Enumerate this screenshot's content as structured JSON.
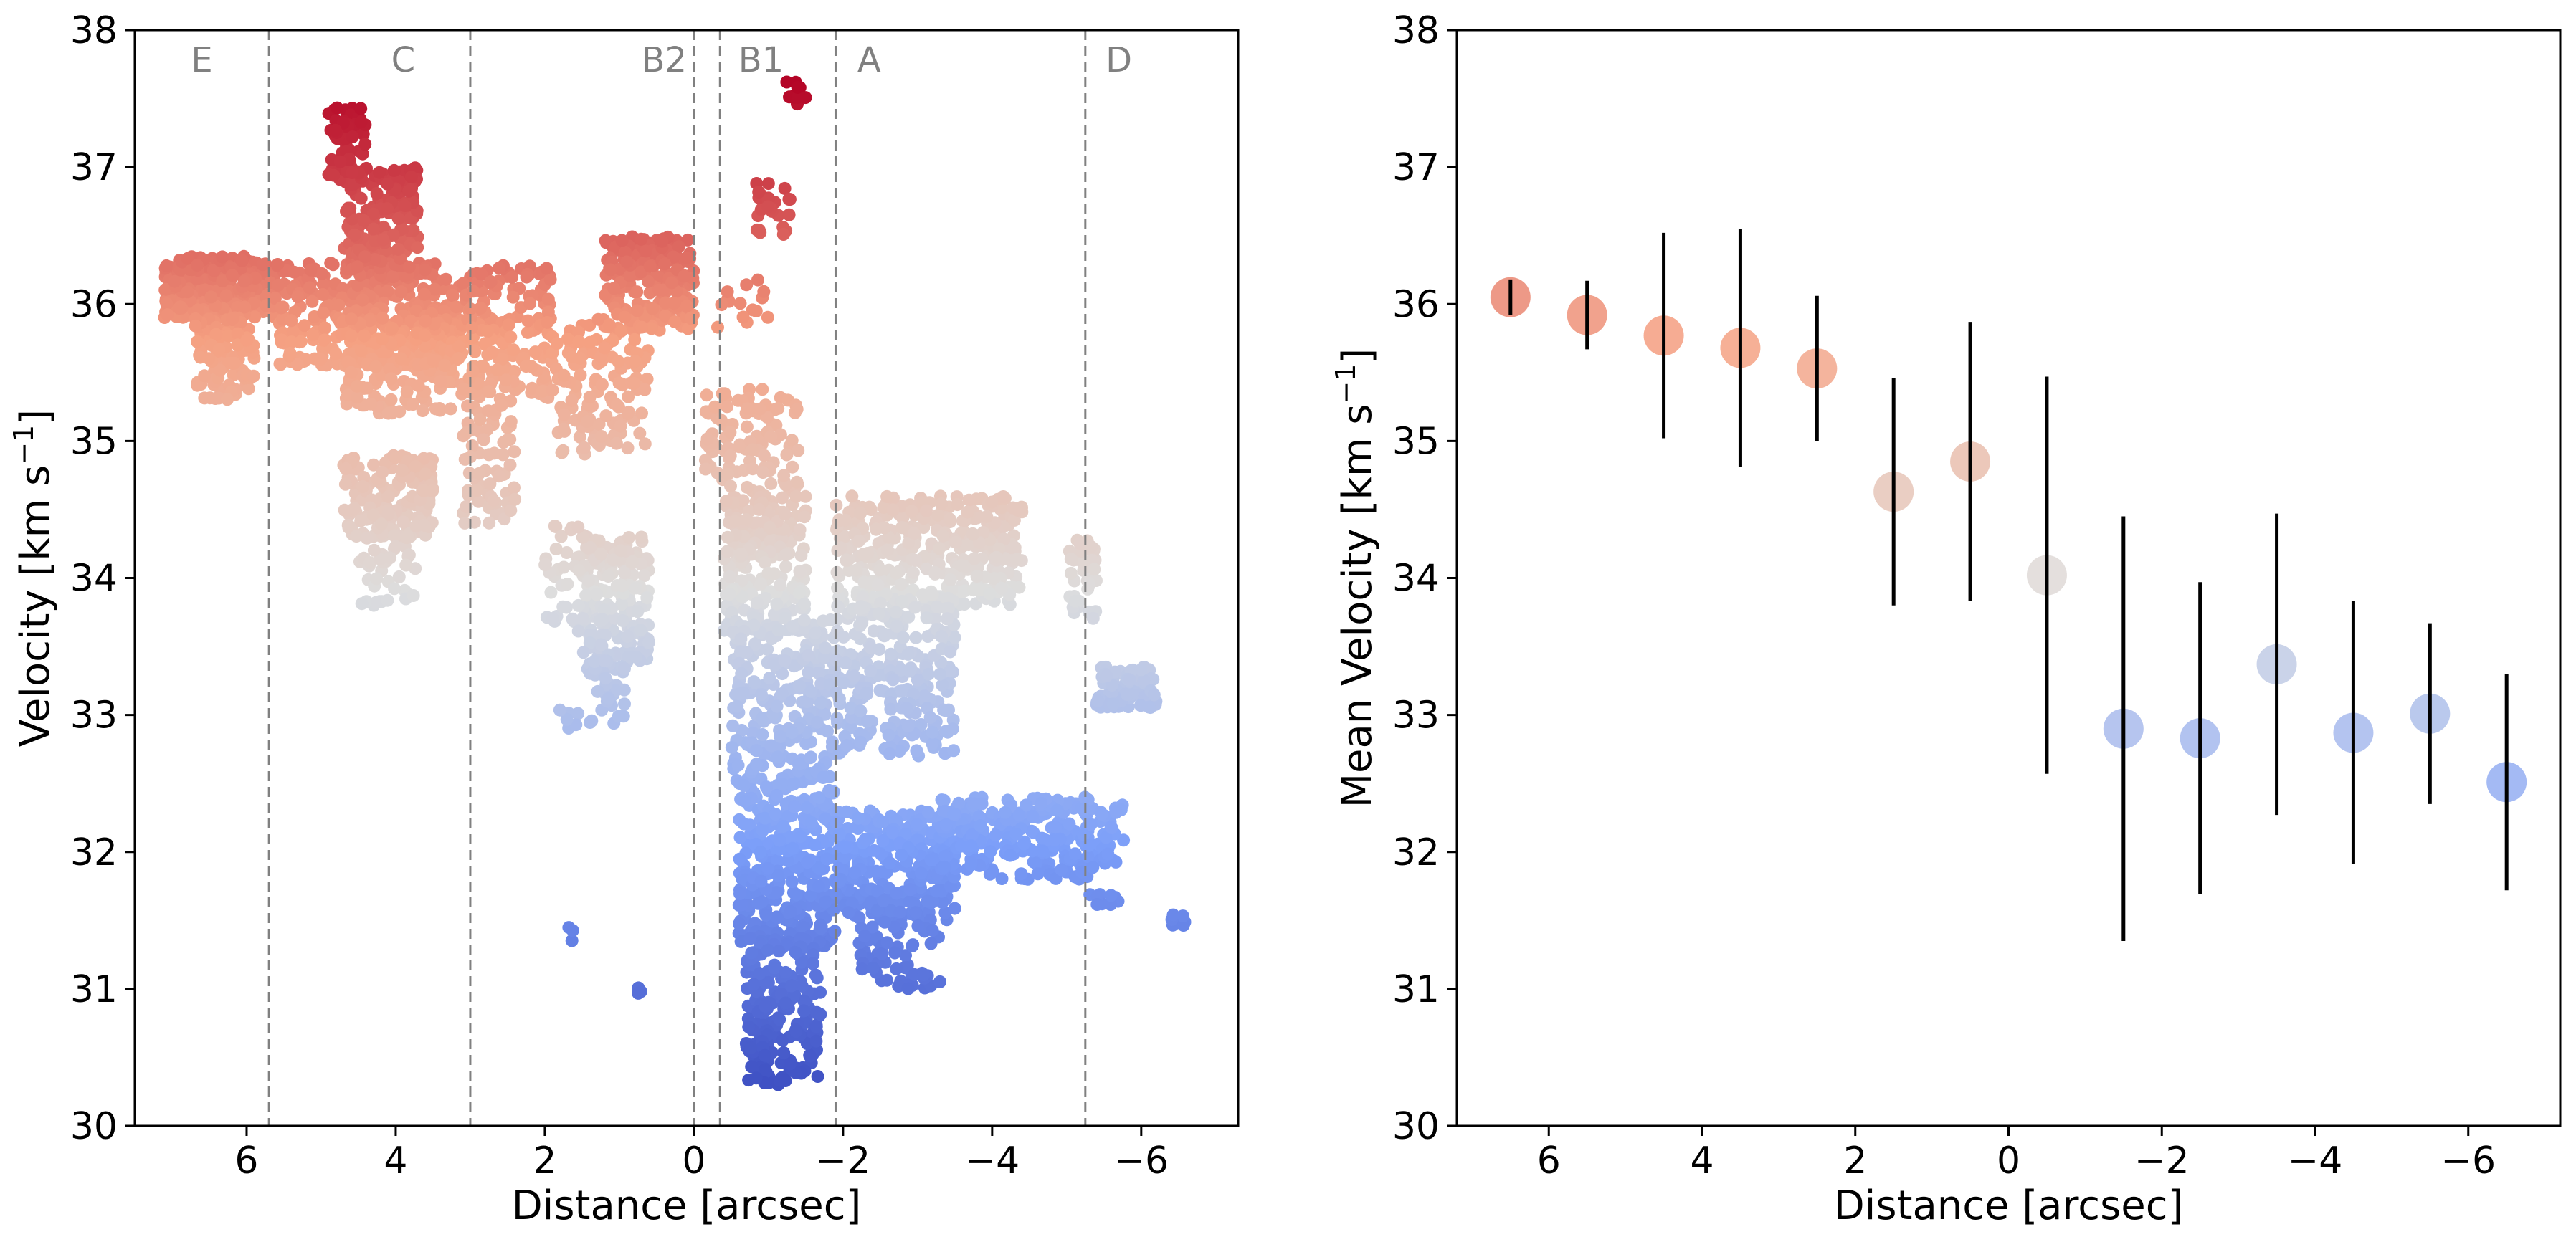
{
  "colors": {
    "low": "#3b4cc0",
    "mid": "#dddddd",
    "high": "#b40426",
    "divider": "#808080",
    "axis": "#000000"
  },
  "chart_data": [
    {
      "type": "scatter",
      "xlabel": "Distance [arcsec]",
      "ylabel_main": "Velocity [km s",
      "ylabel_sup": "−1",
      "ylabel_end": "]",
      "xlim": [
        7.5,
        -7.3
      ],
      "ylim": [
        30,
        38
      ],
      "xticks": [
        6,
        4,
        2,
        0,
        -2,
        -4,
        -6
      ],
      "xtick_labels": [
        "6",
        "4",
        "2",
        "0",
        "−2",
        "−4",
        "−6"
      ],
      "yticks": [
        30,
        31,
        32,
        33,
        34,
        35,
        36,
        37,
        38
      ],
      "ytick_labels": [
        "30",
        "31",
        "32",
        "33",
        "34",
        "35",
        "36",
        "37",
        "38"
      ],
      "colormap": "coolwarm",
      "color_range": [
        30.2,
        37.6
      ],
      "dividers": [
        5.7,
        3.0,
        0.0,
        -0.35,
        -1.9,
        -5.25
      ],
      "regions": [
        {
          "label": "E",
          "x": 6.6
        },
        {
          "label": "C",
          "x": 3.9
        },
        {
          "label": "B2",
          "x": 0.4
        },
        {
          "label": "B1",
          "x": -0.9
        },
        {
          "label": "A",
          "x": -2.35
        },
        {
          "label": "D",
          "x": -5.7
        }
      ],
      "clusters": [
        {
          "x": [
            5.6,
            7.1
          ],
          "y": [
            35.9,
            36.35
          ],
          "n": 300
        },
        {
          "x": [
            5.9,
            6.7
          ],
          "y": [
            35.3,
            35.9
          ],
          "n": 110
        },
        {
          "x": [
            3.1,
            5.6
          ],
          "y": [
            35.55,
            36.3
          ],
          "n": 360
        },
        {
          "x": [
            3.7,
            4.7
          ],
          "y": [
            36.2,
            37.0
          ],
          "n": 200
        },
        {
          "x": [
            4.4,
            4.9
          ],
          "y": [
            36.9,
            37.45
          ],
          "n": 60
        },
        {
          "x": [
            3.1,
            4.7
          ],
          "y": [
            35.2,
            35.9
          ],
          "n": 180
        },
        {
          "x": [
            3.5,
            4.7
          ],
          "y": [
            34.3,
            34.9
          ],
          "n": 170
        },
        {
          "x": [
            3.7,
            4.5
          ],
          "y": [
            33.8,
            34.3
          ],
          "n": 40
        },
        {
          "x": [
            1.9,
            3.1
          ],
          "y": [
            35.3,
            36.3
          ],
          "n": 170
        },
        {
          "x": [
            2.4,
            3.1
          ],
          "y": [
            34.4,
            35.3
          ],
          "n": 70
        },
        {
          "x": [
            0.6,
            1.9
          ],
          "y": [
            34.9,
            35.9
          ],
          "n": 130
        },
        {
          "x": [
            0.0,
            1.2
          ],
          "y": [
            35.8,
            36.5
          ],
          "n": 190
        },
        {
          "x": [
            0.6,
            1.5
          ],
          "y": [
            33.3,
            34.3
          ],
          "n": 190
        },
        {
          "x": [
            1.4,
            2.0
          ],
          "y": [
            33.6,
            34.4
          ],
          "n": 40
        },
        {
          "x": [
            0.9,
            1.4
          ],
          "y": [
            32.9,
            33.4
          ],
          "n": 30
        },
        {
          "x": [
            1.5,
            1.8
          ],
          "y": [
            32.9,
            33.1
          ],
          "n": 6
        },
        {
          "x": [
            1.6,
            1.7
          ],
          "y": [
            31.25,
            31.45
          ],
          "n": 3
        },
        {
          "x": [
            0.7,
            0.8
          ],
          "y": [
            30.95,
            31.05
          ],
          "n": 3
        },
        {
          "x": [
            -0.1,
            -1.4
          ],
          "y": [
            34.5,
            35.4
          ],
          "n": 110
        },
        {
          "x": [
            -0.4,
            -1.5
          ],
          "y": [
            33.6,
            34.6
          ],
          "n": 230
        },
        {
          "x": [
            -0.5,
            -1.9
          ],
          "y": [
            32.5,
            33.7
          ],
          "n": 250
        },
        {
          "x": [
            -0.6,
            -1.9
          ],
          "y": [
            31.3,
            32.5
          ],
          "n": 320
        },
        {
          "x": [
            -0.7,
            -1.7
          ],
          "y": [
            30.3,
            31.4
          ],
          "n": 200
        },
        {
          "x": [
            -0.8,
            -1.3
          ],
          "y": [
            36.5,
            36.9
          ],
          "n": 25
        },
        {
          "x": [
            -1.2,
            -1.5
          ],
          "y": [
            37.45,
            37.65
          ],
          "n": 10
        },
        {
          "x": [
            -0.3,
            -1.0
          ],
          "y": [
            35.8,
            36.2
          ],
          "n": 15
        },
        {
          "x": [
            -1.9,
            -4.4
          ],
          "y": [
            33.8,
            34.6
          ],
          "n": 360
        },
        {
          "x": [
            -1.9,
            -3.5
          ],
          "y": [
            32.7,
            33.8
          ],
          "n": 260
        },
        {
          "x": [
            -1.9,
            -3.5
          ],
          "y": [
            31.5,
            32.3
          ],
          "n": 280
        },
        {
          "x": [
            -2.2,
            -3.3
          ],
          "y": [
            31.0,
            31.5
          ],
          "n": 60
        },
        {
          "x": [
            -3.3,
            -5.3
          ],
          "y": [
            31.8,
            32.4
          ],
          "n": 230
        },
        {
          "x": [
            -5.2,
            -5.8
          ],
          "y": [
            31.85,
            32.4
          ],
          "n": 50
        },
        {
          "x": [
            -5.4,
            -6.2
          ],
          "y": [
            33.05,
            33.35
          ],
          "n": 90
        },
        {
          "x": [
            -5.0,
            -5.4
          ],
          "y": [
            33.7,
            34.3
          ],
          "n": 40
        },
        {
          "x": [
            -5.3,
            -5.7
          ],
          "y": [
            31.6,
            31.7
          ],
          "n": 12
        },
        {
          "x": [
            -6.4,
            -6.6
          ],
          "y": [
            31.45,
            31.55
          ],
          "n": 8
        }
      ]
    },
    {
      "type": "scatter",
      "xlabel": "Distance [arcsec]",
      "ylabel_main": "Mean Velocity [km s",
      "ylabel_sup": "−1",
      "ylabel_end": "]",
      "xlim": [
        7.2,
        -7.2
      ],
      "ylim": [
        30,
        38
      ],
      "xticks": [
        6,
        4,
        2,
        0,
        -2,
        -4,
        -6
      ],
      "xtick_labels": [
        "6",
        "4",
        "2",
        "0",
        "−2",
        "−4",
        "−6"
      ],
      "yticks": [
        30,
        31,
        32,
        33,
        34,
        35,
        36,
        37,
        38
      ],
      "ytick_labels": [
        "30",
        "31",
        "32",
        "33",
        "34",
        "35",
        "36",
        "37",
        "38"
      ],
      "colormap": "coolwarm",
      "color_range": [
        30.2,
        37.6
      ],
      "points": [
        {
          "x": 6.5,
          "y": 36.05,
          "err": 0.13
        },
        {
          "x": 5.5,
          "y": 35.92,
          "err": 0.25
        },
        {
          "x": 4.5,
          "y": 35.77,
          "err": 0.75
        },
        {
          "x": 3.5,
          "y": 35.68,
          "err": 0.87
        },
        {
          "x": 2.5,
          "y": 35.53,
          "err": 0.53
        },
        {
          "x": 1.5,
          "y": 34.63,
          "err": 0.83
        },
        {
          "x": 0.5,
          "y": 34.85,
          "err": 1.02
        },
        {
          "x": -0.5,
          "y": 34.02,
          "err": 1.45
        },
        {
          "x": -1.5,
          "y": 32.9,
          "err": 1.55
        },
        {
          "x": -2.5,
          "y": 32.83,
          "err": 1.14
        },
        {
          "x": -3.5,
          "y": 33.37,
          "err": 1.1
        },
        {
          "x": -4.5,
          "y": 32.87,
          "err": 0.96
        },
        {
          "x": -5.5,
          "y": 33.01,
          "err": 0.66
        },
        {
          "x": -6.5,
          "y": 32.51,
          "err": 0.79
        }
      ]
    }
  ]
}
